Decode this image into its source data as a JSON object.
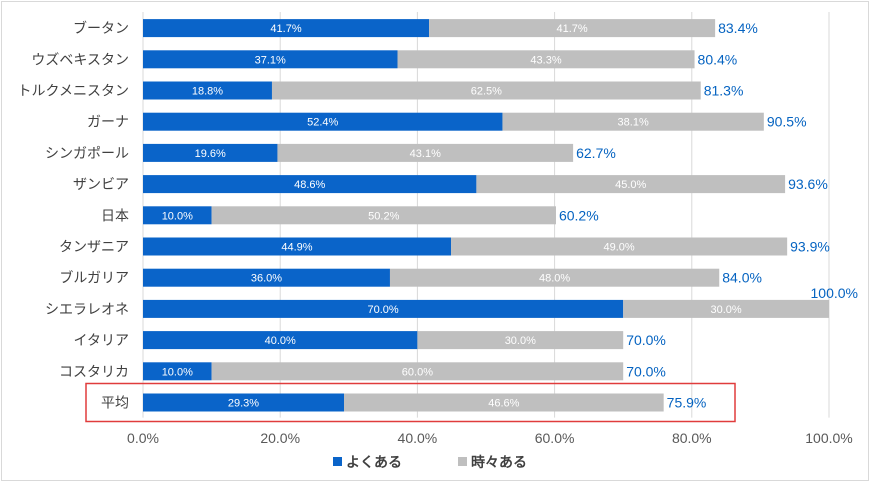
{
  "chart_data": {
    "type": "bar",
    "orientation": "horizontal",
    "stacked": true,
    "categories": [
      "ブータン",
      "ウズベキスタン",
      "トルクメニスタン",
      "ガーナ",
      "シンガポール",
      "ザンビア",
      "日本",
      "タンザニア",
      "ブルガリア",
      "シエラレオネ",
      "イタリア",
      "コスタリカ",
      "平均"
    ],
    "series": [
      {
        "name": "よくある",
        "color": "#0a64c9",
        "values": [
          41.7,
          37.1,
          18.8,
          52.4,
          19.6,
          48.6,
          10.0,
          44.9,
          36.0,
          70.0,
          40.0,
          10.0,
          29.3
        ],
        "labels": [
          "41.7%",
          "37.1%",
          "18.8%",
          "52.4%",
          "19.6%",
          "48.6%",
          "10.0%",
          "44.9%",
          "36.0%",
          "70.0%",
          "40.0%",
          "10.0%",
          "29.3%"
        ]
      },
      {
        "name": "時々ある",
        "color": "#bfbfbf",
        "values": [
          41.7,
          43.3,
          62.5,
          38.1,
          43.1,
          45.0,
          50.2,
          49.0,
          48.0,
          30.0,
          30.0,
          60.0,
          46.6
        ],
        "labels": [
          "41.7%",
          "43.3%",
          "62.5%",
          "38.1%",
          "43.1%",
          "45.0%",
          "50.2%",
          "49.0%",
          "48.0%",
          "30.0%",
          "30.0%",
          "60.0%",
          "46.6%"
        ]
      }
    ],
    "totals": [
      "83.4%",
      "80.4%",
      "81.3%",
      "90.5%",
      "62.7%",
      "93.6%",
      "60.2%",
      "93.9%",
      "84.0%",
      "100.0%",
      "70.0%",
      "70.0%",
      "75.9%"
    ],
    "xlim": [
      0,
      100
    ],
    "xticks": [
      0,
      20,
      40,
      60,
      80,
      100
    ],
    "xtick_labels": [
      "0.0%",
      "20.0%",
      "40.0%",
      "60.0%",
      "80.0%",
      "100.0%"
    ],
    "grid": true,
    "legend": "bottom",
    "highlighted_category": "平均",
    "highlight_color": "#e03c3c",
    "total_label_color": "#0563c1"
  }
}
